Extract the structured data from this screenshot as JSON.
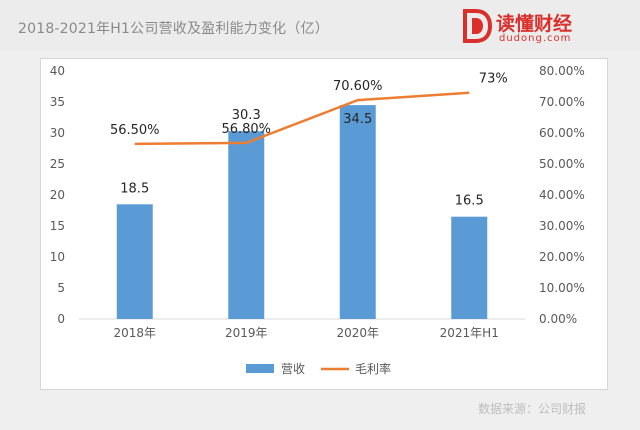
{
  "header": {
    "title": "2018-2021年H1公司营收及盈利能力变化（亿）",
    "logo_name": "读懂财经",
    "logo_domain": "dudong.com"
  },
  "footer": {
    "source": "数据来源：公司财报"
  },
  "colors": {
    "bar": "#5b9bd5",
    "line": "#ed7d31",
    "brand": "#d9302c"
  },
  "chart_data": {
    "type": "bar",
    "title": "2018-2021年H1公司营收及盈利能力变化（亿）",
    "categories": [
      "2018年",
      "2019年",
      "2020年",
      "2021年H1"
    ],
    "series": [
      {
        "name": "营收",
        "type": "bar",
        "axis": "left",
        "values": [
          18.5,
          30.3,
          34.5,
          16.5
        ],
        "labels": [
          "18.5",
          "30.3",
          "34.5",
          "16.5"
        ]
      },
      {
        "name": "毛利率",
        "type": "line",
        "axis": "right",
        "values": [
          56.5,
          56.8,
          70.6,
          73.0
        ],
        "labels": [
          "56.50%",
          "56.80%",
          "70.60%",
          "73%"
        ]
      }
    ],
    "y_left": {
      "min": 0,
      "max": 40,
      "step": 5,
      "ticks": [
        "0",
        "5",
        "10",
        "15",
        "20",
        "25",
        "30",
        "35",
        "40"
      ]
    },
    "y_right": {
      "min": 0,
      "max": 80,
      "step": 10,
      "ticks": [
        "0.00%",
        "10.00%",
        "20.00%",
        "30.00%",
        "40.00%",
        "50.00%",
        "60.00%",
        "70.00%",
        "80.00%"
      ]
    },
    "grid": false,
    "legend_position": "bottom"
  }
}
